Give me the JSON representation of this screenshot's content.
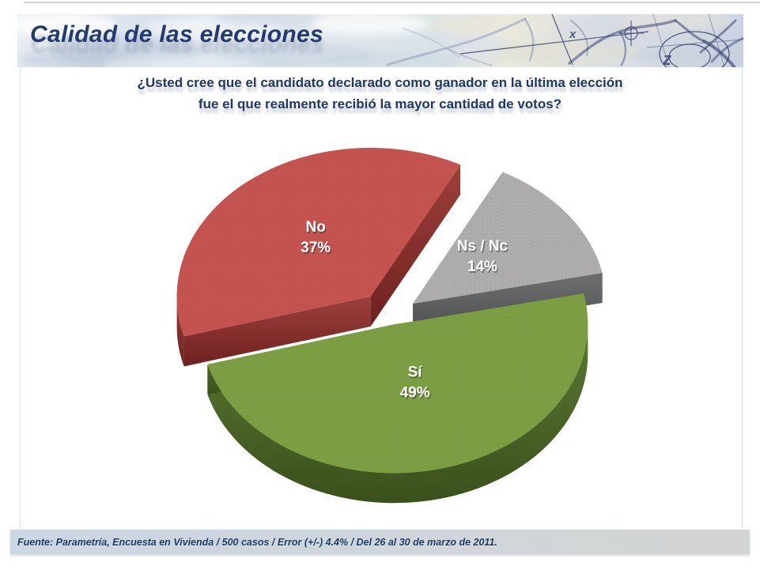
{
  "header": {
    "title": "Calidad de las elecciones",
    "art_glyphs": [
      "x",
      "z"
    ]
  },
  "question": {
    "line1": "¿Usted cree que el candidato declarado como ganador en la última elección",
    "line2": "fue el que realmente recibió la mayor cantidad de votos?"
  },
  "chart_data": {
    "type": "pie",
    "style": "3d-exploded",
    "title": "",
    "unit": "%",
    "legend": "none",
    "labels_on_slices": true,
    "label_text_color": "#FFFFFF",
    "start_angle_deg": -12,
    "slices": [
      {
        "id": "si",
        "label": "Sí",
        "value": 49,
        "color": "#7C9F43",
        "side_light": "#5C7A33",
        "side_dark": "#3A511C",
        "explode": 14
      },
      {
        "id": "no",
        "label": "No",
        "value": 37,
        "color": "#C5534F",
        "side_light": "#9E403C",
        "side_dark": "#6E211F",
        "explode": 42
      },
      {
        "id": "ns-nc",
        "label": "Ns / Nc",
        "value": 14,
        "color": "#AFADAF",
        "side_light": "#6E6F70",
        "side_dark": "#4E4F50",
        "explode": 34
      }
    ]
  },
  "footer": {
    "source": "Fuente: Parametría, Encuesta en Vivienda / 500 casos / Error (+/-) 4.4% / Del 26 al 30 de marzo de 2011."
  }
}
